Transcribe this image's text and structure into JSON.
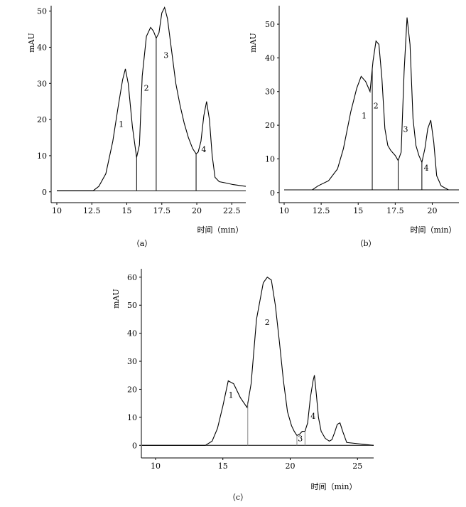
{
  "chart_data": [
    {
      "type": "line",
      "caption": "（a）",
      "xlabel": "时间（min）",
      "ylabel": "mAU",
      "xlim": [
        10,
        23.5
      ],
      "ylim": [
        -3,
        51.5
      ],
      "x_ticks": [
        10,
        12.5,
        15,
        17.5,
        20,
        22.5
      ],
      "y_ticks": [
        0,
        10,
        20,
        30,
        40,
        50
      ],
      "baseline": 0.3,
      "series": [
        {
          "x": [
            10,
            12.6,
            13,
            13.5,
            14,
            14.4,
            14.7,
            14.9,
            15.1,
            15.4,
            15.7,
            15.9,
            16.1,
            16.4,
            16.7,
            16.9,
            17.1,
            17.3,
            17.5,
            17.7,
            17.9,
            18.2,
            18.5,
            18.8,
            19.1,
            19.4,
            19.7,
            19.95,
            20.1,
            20.3,
            20.5,
            20.7,
            20.9,
            21.1,
            21.3,
            21.6,
            22,
            22.6,
            23.5
          ],
          "y": [
            0.3,
            0.3,
            1.5,
            5,
            14,
            24,
            31,
            34,
            30,
            18,
            9.5,
            13,
            32,
            43,
            45.5,
            44.5,
            42.5,
            44,
            49.5,
            51,
            48,
            39,
            30,
            24,
            19,
            15,
            12,
            10.5,
            11,
            14,
            21,
            25,
            20,
            10,
            4,
            2.8,
            2.5,
            2,
            1.5
          ]
        }
      ],
      "drop_lines": [
        15.7,
        17.1,
        19.95
      ],
      "peak_labels": [
        {
          "label": "1",
          "x": 14.6,
          "y": 18
        },
        {
          "label": "2",
          "x": 16.4,
          "y": 28
        },
        {
          "label": "3",
          "x": 17.8,
          "y": 37
        },
        {
          "label": "4",
          "x": 20.5,
          "y": 11
        }
      ]
    },
    {
      "type": "line",
      "caption": "（b）",
      "xlabel": "时间（min）",
      "ylabel": "mAU",
      "xlim": [
        10,
        21.8
      ],
      "ylim": [
        -3,
        55.5
      ],
      "x_ticks": [
        10,
        12.5,
        15,
        17.5,
        20
      ],
      "y_ticks": [
        0,
        10,
        20,
        30,
        40,
        50
      ],
      "baseline": 0.8,
      "series": [
        {
          "x": [
            10,
            11.9,
            12.3,
            13,
            13.6,
            14,
            14.5,
            14.9,
            15.2,
            15.5,
            15.8,
            16,
            16.2,
            16.4,
            16.6,
            16.8,
            17,
            17.2,
            17.5,
            17.7,
            17.9,
            18.1,
            18.3,
            18.5,
            18.7,
            18.9,
            19.1,
            19.3,
            19.5,
            19.7,
            19.9,
            20.1,
            20.3,
            20.6,
            21.1
          ],
          "y": [
            0.8,
            0.8,
            2,
            3.5,
            7,
            13,
            24,
            31,
            34.5,
            33,
            30,
            39,
            45,
            44,
            34,
            19,
            14,
            12.5,
            11,
            9.5,
            12,
            36,
            52,
            44,
            22,
            14,
            11,
            9,
            13,
            19,
            21.5,
            15,
            5,
            2,
            0.8
          ]
        }
      ],
      "drop_lines": [
        15.95,
        17.7,
        19.3
      ],
      "peak_labels": [
        {
          "label": "1",
          "x": 15.4,
          "y": 22
        },
        {
          "label": "2",
          "x": 16.2,
          "y": 25
        },
        {
          "label": "3",
          "x": 18.2,
          "y": 18
        },
        {
          "label": "4",
          "x": 19.6,
          "y": 6.5
        }
      ]
    },
    {
      "type": "line",
      "caption": "（c）",
      "xlabel": "时间（min）",
      "ylabel": "mAU",
      "xlim": [
        9,
        26.2
      ],
      "ylim": [
        -4.5,
        63
      ],
      "x_ticks": [
        10,
        15,
        20,
        25
      ],
      "y_ticks": [
        0,
        10,
        20,
        30,
        40,
        50,
        60
      ],
      "baseline": 0,
      "series": [
        {
          "x": [
            9,
            13.7,
            14.2,
            14.6,
            15,
            15.4,
            15.8,
            16.3,
            16.8,
            17.1,
            17.5,
            18,
            18.3,
            18.6,
            18.9,
            19.2,
            19.5,
            19.8,
            20.1,
            20.3,
            20.5,
            20.7,
            20.9,
            21.1,
            21.3,
            21.5,
            21.7,
            21.8,
            21.95,
            22.1,
            22.3,
            22.6,
            22.9,
            23.1,
            23.3,
            23.5,
            23.7,
            23.9,
            24.2,
            26.2
          ],
          "y": [
            0,
            0,
            1.5,
            6,
            14,
            23,
            22,
            17,
            13.5,
            22,
            45,
            58,
            60,
            59,
            50,
            37,
            23,
            12,
            7,
            5,
            3.5,
            4,
            5,
            5,
            8,
            17,
            23,
            25,
            18,
            10,
            5,
            2.5,
            1.5,
            2,
            4.5,
            7.5,
            8,
            5,
            1,
            0
          ]
        }
      ],
      "drop_lines": [
        16.85,
        20.5,
        21.1
      ],
      "peak_labels": [
        {
          "label": "1",
          "x": 15.6,
          "y": 17
        },
        {
          "label": "2",
          "x": 18.3,
          "y": 43
        },
        {
          "label": "3",
          "x": 20.75,
          "y": 1.5
        },
        {
          "label": "4",
          "x": 21.7,
          "y": 9.5
        }
      ]
    }
  ]
}
